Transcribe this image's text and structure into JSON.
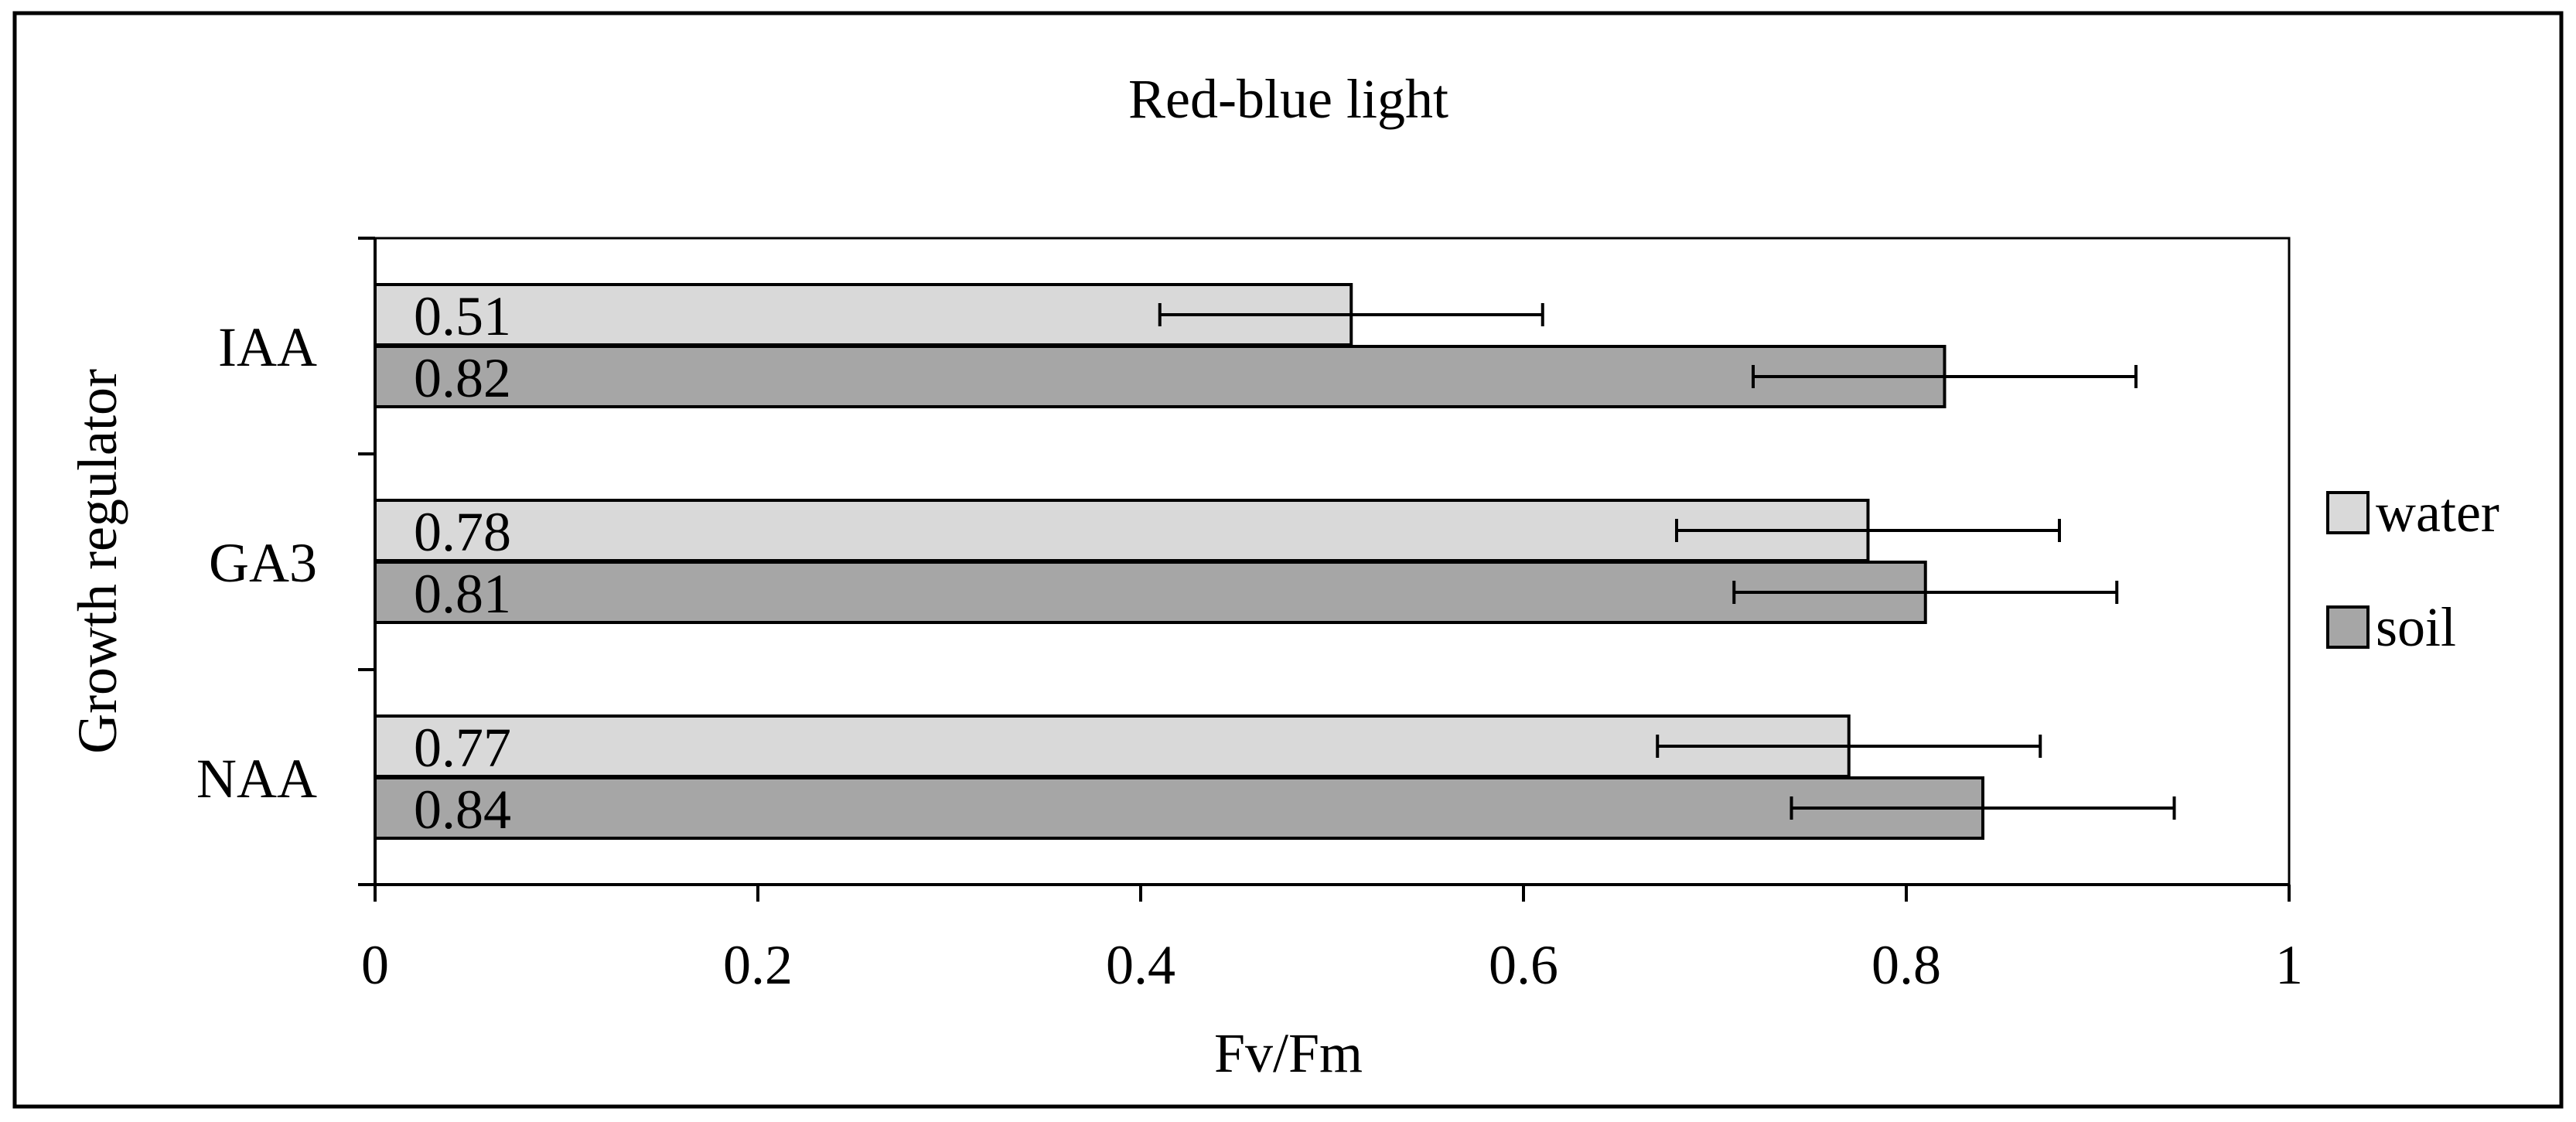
{
  "chart_data": {
    "type": "bar",
    "orientation": "horizontal",
    "title": "Red-blue light",
    "xlabel": "Fv/Fm",
    "ylabel": "Growth regulator",
    "categories": [
      "IAA",
      "GA3",
      "NAA"
    ],
    "series": [
      {
        "name": "water",
        "color": "#d9d9d9",
        "values": [
          0.51,
          0.78,
          0.77
        ],
        "error": [
          0.1,
          0.1,
          0.1
        ],
        "labels": [
          "0.51",
          "0.78",
          "0.77"
        ]
      },
      {
        "name": "soil",
        "color": "#a6a6a6",
        "values": [
          0.82,
          0.81,
          0.84
        ],
        "error": [
          0.1,
          0.1,
          0.1
        ],
        "labels": [
          "0.82",
          "0.81",
          "0.84"
        ]
      }
    ],
    "xlim": [
      0,
      1
    ],
    "xticks": [
      "0",
      "0.2",
      "0.4",
      "0.6",
      "0.8",
      "1"
    ],
    "grid": false,
    "legend_position": "right"
  }
}
